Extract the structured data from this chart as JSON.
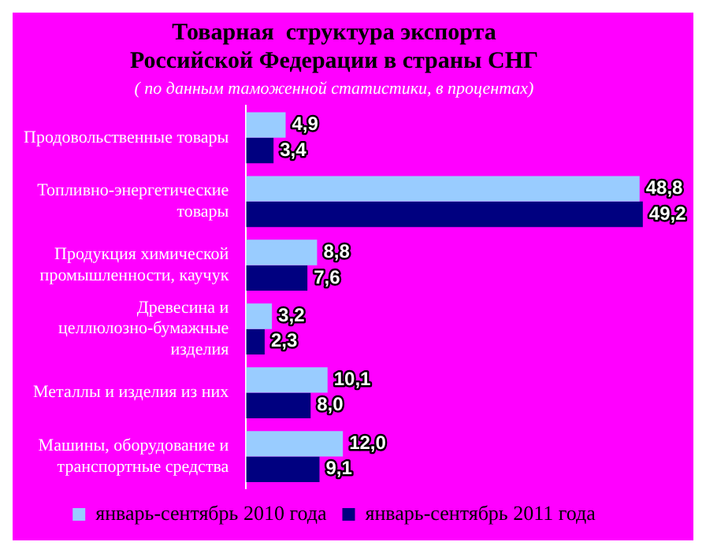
{
  "chart_data": {
    "type": "bar",
    "orientation": "horizontal",
    "title": "Товарная  структура экспорта Российской Федерации в страны СНГ",
    "subtitle": "( по данным таможенной статистики, в процентах)",
    "categories": [
      "Продовольственные товары",
      "Топливно-энергетические товары",
      "Продукция химической промышленности, каучук",
      "Древесина и целлюлозно-бумажные изделия",
      "Металлы и изделия из них",
      "Машины, оборудование и транспортные средства"
    ],
    "series": [
      {
        "name": "январь-сентябрь 2010 года",
        "color": "#99ccff",
        "values": [
          4.9,
          48.8,
          8.8,
          3.2,
          10.1,
          12.0
        ],
        "value_labels": [
          "4,9",
          "48,8",
          "8,8",
          "3,2",
          "10,1",
          "12,0"
        ]
      },
      {
        "name": "январь-сентябрь 2011 года",
        "color": "#000080",
        "values": [
          3.4,
          49.2,
          7.6,
          2.3,
          8.0,
          9.1
        ],
        "value_labels": [
          "3,4",
          "49,2",
          "7,6",
          "2,3",
          "8,0",
          "9,1"
        ]
      }
    ],
    "legend": "bottom"
  }
}
